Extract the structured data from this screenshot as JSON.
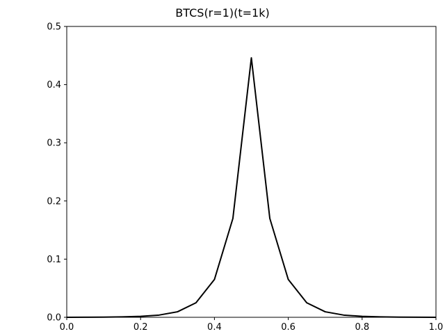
{
  "chart_data": {
    "type": "line",
    "title": "BTCS(r=1)(t=1k)",
    "xlabel": "",
    "ylabel": "",
    "xlim": [
      0.0,
      1.0
    ],
    "ylim": [
      0.0,
      0.5
    ],
    "grid": false,
    "xticks": [
      "0.0",
      "0.2",
      "0.4",
      "0.6",
      "0.8",
      "1.0"
    ],
    "yticks": [
      "0.0",
      "0.1",
      "0.2",
      "0.3",
      "0.4",
      "0.5"
    ],
    "series": [
      {
        "color": "#000000",
        "x": [
          0.0,
          0.05,
          0.1,
          0.15,
          0.2,
          0.25,
          0.3,
          0.35,
          0.4,
          0.45,
          0.5,
          0.55,
          0.6,
          0.65,
          0.7,
          0.75,
          0.8,
          0.85,
          0.9,
          0.95,
          1.0
        ],
        "y": [
          0.0,
          0.0001,
          0.0003,
          0.0008,
          0.0016,
          0.0038,
          0.0095,
          0.025,
          0.065,
          0.17,
          0.446,
          0.17,
          0.065,
          0.025,
          0.0095,
          0.0038,
          0.0016,
          0.0008,
          0.0003,
          0.0001,
          0.0
        ]
      }
    ]
  }
}
